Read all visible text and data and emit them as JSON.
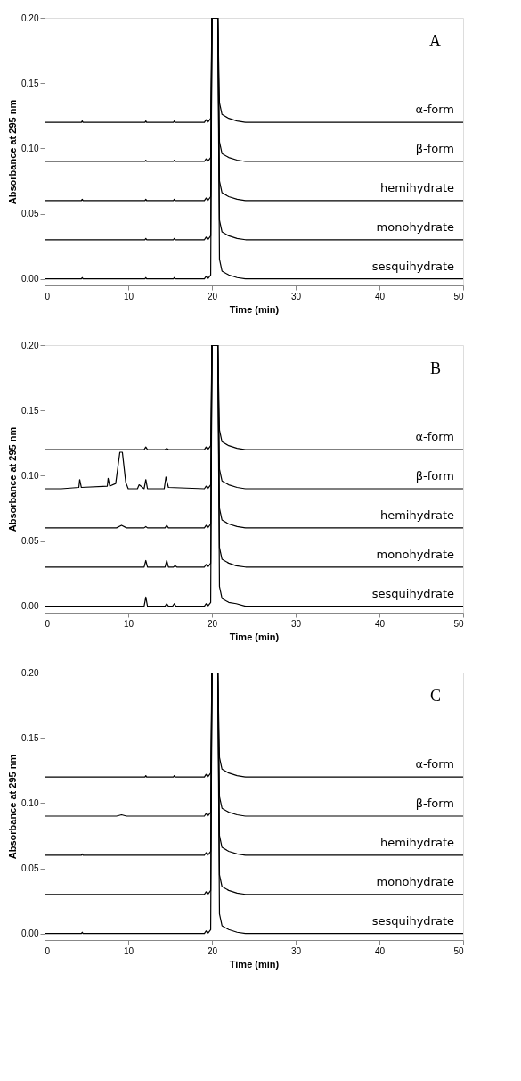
{
  "chart_data": [
    {
      "type": "line",
      "annotations": [
        "A"
      ],
      "xlabel": "Time (min)",
      "ylabel": "Absorbance at 295 nm",
      "xlim": [
        0,
        50
      ],
      "ylim": [
        -0.005,
        0.2
      ],
      "xticks": [
        0,
        10,
        20,
        30,
        40,
        50
      ],
      "yticks": [
        {
          "value": 0,
          "label": "0.00"
        },
        {
          "value": 0.05,
          "label": "0.05"
        },
        {
          "value": 0.1,
          "label": "0.10"
        },
        {
          "value": 0.15,
          "label": "0.15"
        },
        {
          "value": 0.2,
          "label": "0.20"
        }
      ],
      "grid": false,
      "series": [
        {
          "name": "α-form",
          "color": "#000000",
          "x": [
            0,
            4.4,
            4.5,
            4.6,
            12,
            12.1,
            12.2,
            15.4,
            15.5,
            15.6,
            19.1,
            19.3,
            19.5,
            19.85,
            20.0,
            20.7,
            20.9,
            21.2,
            22,
            23,
            24,
            50
          ],
          "values": [
            0.12,
            0.12,
            0.121,
            0.12,
            0.12,
            0.121,
            0.12,
            0.12,
            0.121,
            0.12,
            0.12,
            0.122,
            0.12,
            0.123,
            0.2,
            0.2,
            0.135,
            0.126,
            0.123,
            0.121,
            0.12,
            0.12
          ]
        },
        {
          "name": "β-form",
          "color": "#000000",
          "x": [
            0,
            4.4,
            4.5,
            4.6,
            12,
            12.1,
            12.2,
            15.4,
            15.5,
            15.6,
            19.1,
            19.3,
            19.5,
            19.85,
            20.0,
            20.7,
            20.9,
            21.2,
            22,
            23,
            24,
            50
          ],
          "values": [
            0.09,
            0.09,
            0.09,
            0.09,
            0.09,
            0.091,
            0.09,
            0.09,
            0.091,
            0.09,
            0.09,
            0.092,
            0.09,
            0.093,
            0.2,
            0.2,
            0.105,
            0.096,
            0.093,
            0.091,
            0.09,
            0.09
          ]
        },
        {
          "name": "hemihydrate",
          "color": "#000000",
          "x": [
            0,
            4.4,
            4.5,
            4.6,
            12,
            12.1,
            12.2,
            15.4,
            15.5,
            15.6,
            19.1,
            19.3,
            19.5,
            19.85,
            20.0,
            20.7,
            20.9,
            21.2,
            22,
            23,
            24,
            50
          ],
          "values": [
            0.06,
            0.06,
            0.061,
            0.06,
            0.06,
            0.061,
            0.06,
            0.06,
            0.061,
            0.06,
            0.06,
            0.062,
            0.06,
            0.063,
            0.2,
            0.2,
            0.075,
            0.066,
            0.063,
            0.061,
            0.06,
            0.06
          ]
        },
        {
          "name": "monohydrate",
          "color": "#000000",
          "x": [
            0,
            4.4,
            4.5,
            4.6,
            12,
            12.1,
            12.2,
            15.4,
            15.5,
            15.6,
            19.1,
            19.3,
            19.5,
            19.85,
            20.0,
            20.7,
            20.9,
            21.2,
            22,
            23,
            24,
            50
          ],
          "values": [
            0.03,
            0.03,
            0.03,
            0.03,
            0.03,
            0.031,
            0.03,
            0.03,
            0.031,
            0.03,
            0.03,
            0.032,
            0.03,
            0.033,
            0.2,
            0.2,
            0.045,
            0.036,
            0.033,
            0.031,
            0.03,
            0.03
          ]
        },
        {
          "name": "sesquihydrate",
          "color": "#000000",
          "x": [
            0,
            4.4,
            4.5,
            4.6,
            12,
            12.1,
            12.2,
            15.4,
            15.5,
            15.6,
            19.1,
            19.3,
            19.5,
            19.85,
            20.0,
            20.7,
            20.9,
            21.2,
            22,
            23,
            24,
            50
          ],
          "values": [
            0,
            0,
            0.001,
            0,
            0,
            0.001,
            0,
            0,
            0.001,
            0,
            0,
            0.002,
            0,
            0.003,
            0.2,
            0.2,
            0.015,
            0.006,
            0.003,
            0.001,
            0,
            0
          ]
        }
      ]
    },
    {
      "type": "line",
      "annotations": [
        "B"
      ],
      "xlabel": "Time (min)",
      "ylabel": "Absorbance at 295 nm",
      "xlim": [
        0,
        50
      ],
      "ylim": [
        -0.005,
        0.2
      ],
      "xticks": [
        0,
        10,
        20,
        30,
        40,
        50
      ],
      "yticks": [
        {
          "value": 0,
          "label": "0.00"
        },
        {
          "value": 0.05,
          "label": "0.05"
        },
        {
          "value": 0.1,
          "label": "0.10"
        },
        {
          "value": 0.15,
          "label": "0.15"
        },
        {
          "value": 0.2,
          "label": "0.20"
        }
      ],
      "grid": false,
      "series": [
        {
          "name": "α-form",
          "color": "#000000",
          "x": [
            0,
            11.9,
            12.1,
            12.3,
            14.4,
            14.6,
            14.8,
            19.1,
            19.3,
            19.5,
            19.85,
            20.0,
            20.7,
            20.9,
            21.2,
            22,
            23,
            24,
            50
          ],
          "values": [
            0.12,
            0.12,
            0.122,
            0.12,
            0.12,
            0.121,
            0.12,
            0.12,
            0.122,
            0.12,
            0.123,
            0.2,
            0.2,
            0.135,
            0.126,
            0.123,
            0.121,
            0.12,
            0.12
          ]
        },
        {
          "name": "β-form",
          "color": "#000000",
          "x": [
            0,
            2,
            4.1,
            4.2,
            4.4,
            7.5,
            7.6,
            7.8,
            8.5,
            9.0,
            9.3,
            9.7,
            10,
            11.1,
            11.3,
            11.9,
            12.1,
            12.3,
            14.3,
            14.5,
            14.8,
            19.1,
            19.3,
            19.5,
            19.85,
            20.0,
            20.7,
            20.9,
            21.2,
            22,
            23,
            24,
            50
          ],
          "values": [
            0.09,
            0.09,
            0.091,
            0.097,
            0.091,
            0.092,
            0.098,
            0.092,
            0.094,
            0.118,
            0.118,
            0.095,
            0.09,
            0.09,
            0.093,
            0.09,
            0.097,
            0.09,
            0.09,
            0.099,
            0.091,
            0.09,
            0.092,
            0.09,
            0.093,
            0.2,
            0.2,
            0.105,
            0.096,
            0.093,
            0.091,
            0.09,
            0.09
          ]
        },
        {
          "name": "hemihydrate",
          "color": "#000000",
          "x": [
            0,
            8.6,
            9.2,
            9.8,
            11.9,
            12.1,
            12.3,
            14.4,
            14.6,
            14.8,
            19.1,
            19.3,
            19.5,
            19.85,
            20.0,
            20.7,
            20.9,
            21.2,
            22,
            23,
            24,
            50
          ],
          "values": [
            0.06,
            0.06,
            0.062,
            0.06,
            0.06,
            0.061,
            0.06,
            0.06,
            0.062,
            0.06,
            0.06,
            0.062,
            0.06,
            0.063,
            0.2,
            0.2,
            0.075,
            0.066,
            0.063,
            0.061,
            0.06,
            0.06
          ]
        },
        {
          "name": "monohydrate",
          "color": "#000000",
          "x": [
            0,
            11.9,
            12.1,
            12.3,
            14.4,
            14.6,
            14.8,
            15.4,
            15.6,
            15.8,
            19.1,
            19.3,
            19.5,
            19.85,
            20.0,
            20.7,
            20.9,
            21.2,
            22,
            22.9,
            24,
            50
          ],
          "values": [
            0.03,
            0.03,
            0.035,
            0.03,
            0.03,
            0.035,
            0.03,
            0.03,
            0.031,
            0.03,
            0.03,
            0.032,
            0.03,
            0.033,
            0.2,
            0.2,
            0.045,
            0.036,
            0.033,
            0.031,
            0.03,
            0.03
          ]
        },
        {
          "name": "sesquihydrate",
          "color": "#000000",
          "x": [
            0,
            11.9,
            12.1,
            12.3,
            14.4,
            14.6,
            14.8,
            15.3,
            15.5,
            15.7,
            19.1,
            19.3,
            19.5,
            19.85,
            20.0,
            20.7,
            20.9,
            21.2,
            22,
            22.9,
            24,
            50
          ],
          "values": [
            0,
            0,
            0.007,
            0,
            0,
            0.002,
            0,
            0,
            0.002,
            0,
            0,
            0.002,
            0,
            0.003,
            0.2,
            0.2,
            0.015,
            0.006,
            0.003,
            0.002,
            0,
            0
          ]
        }
      ]
    },
    {
      "type": "line",
      "annotations": [
        "C"
      ],
      "xlabel": "Time (min)",
      "ylabel": "Absorbance at 295 nm",
      "xlim": [
        0,
        50
      ],
      "ylim": [
        -0.005,
        0.2
      ],
      "xticks": [
        0,
        10,
        20,
        30,
        40,
        50
      ],
      "yticks": [
        {
          "value": 0,
          "label": "0.00"
        },
        {
          "value": 0.05,
          "label": "0.05"
        },
        {
          "value": 0.1,
          "label": "0.10"
        },
        {
          "value": 0.15,
          "label": "0.15"
        },
        {
          "value": 0.2,
          "label": "0.20"
        }
      ],
      "grid": false,
      "series": [
        {
          "name": "α-form",
          "color": "#000000",
          "x": [
            0,
            12,
            12.1,
            12.2,
            15.4,
            15.5,
            15.6,
            19.1,
            19.3,
            19.5,
            19.85,
            20.0,
            20.7,
            20.9,
            21.2,
            22,
            23,
            24,
            50
          ],
          "values": [
            0.12,
            0.12,
            0.121,
            0.12,
            0.12,
            0.121,
            0.12,
            0.12,
            0.122,
            0.12,
            0.123,
            0.2,
            0.2,
            0.135,
            0.126,
            0.123,
            0.121,
            0.12,
            0.12
          ]
        },
        {
          "name": "β-form",
          "color": "#000000",
          "x": [
            0,
            8.6,
            9.2,
            9.8,
            19.1,
            19.3,
            19.5,
            19.85,
            20.0,
            20.7,
            20.9,
            21.2,
            22,
            23,
            24,
            50
          ],
          "values": [
            0.09,
            0.09,
            0.091,
            0.09,
            0.09,
            0.092,
            0.09,
            0.093,
            0.2,
            0.2,
            0.105,
            0.096,
            0.093,
            0.091,
            0.09,
            0.09
          ]
        },
        {
          "name": "hemihydrate",
          "color": "#000000",
          "x": [
            0,
            4.4,
            4.5,
            4.6,
            19.1,
            19.3,
            19.5,
            19.85,
            20.0,
            20.7,
            20.9,
            21.2,
            22,
            23,
            24,
            50
          ],
          "values": [
            0.06,
            0.06,
            0.061,
            0.06,
            0.06,
            0.062,
            0.06,
            0.063,
            0.2,
            0.2,
            0.075,
            0.066,
            0.063,
            0.061,
            0.06,
            0.06
          ]
        },
        {
          "name": "monohydrate",
          "color": "#000000",
          "x": [
            0,
            19.1,
            19.3,
            19.5,
            19.85,
            20.0,
            20.7,
            20.9,
            21.2,
            22,
            23,
            24,
            50
          ],
          "values": [
            0.03,
            0.03,
            0.032,
            0.03,
            0.033,
            0.2,
            0.2,
            0.045,
            0.036,
            0.033,
            0.031,
            0.03,
            0.03
          ]
        },
        {
          "name": "sesquihydrate",
          "color": "#000000",
          "x": [
            0,
            4.4,
            4.5,
            4.6,
            19.1,
            19.3,
            19.5,
            19.85,
            20.0,
            20.7,
            20.9,
            21.2,
            22,
            23,
            24,
            50
          ],
          "values": [
            0,
            0,
            0.001,
            0,
            0,
            0.002,
            0,
            0.003,
            0.2,
            0.2,
            0.015,
            0.006,
            0.003,
            0.001,
            0,
            0
          ]
        }
      ]
    }
  ]
}
